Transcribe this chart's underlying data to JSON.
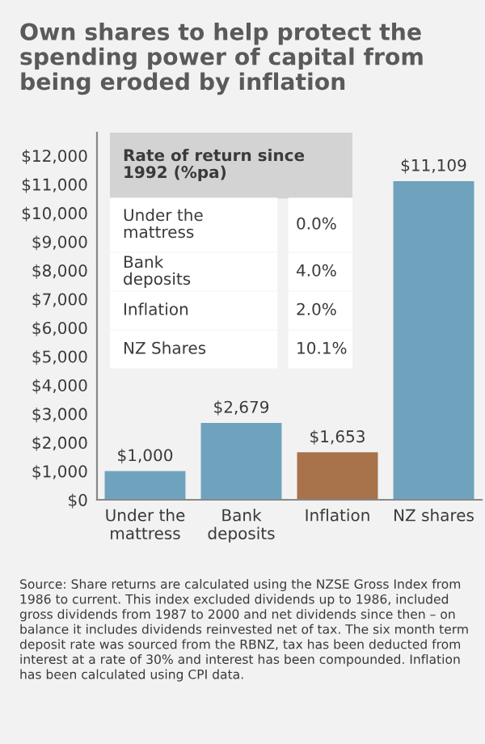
{
  "chart_data": {
    "type": "bar",
    "title": "Own shares to help protect the spending power of capital from being eroded by inflation",
    "categories": [
      "Under the\nmattress",
      "Bank\ndeposits",
      "Inflation",
      "NZ shares"
    ],
    "values": [
      1000,
      2679,
      1653,
      11109
    ],
    "colors": [
      "#6fa3bd",
      "#6fa3bd",
      "#a8724a",
      "#6fa3bd"
    ],
    "value_labels": [
      "$1,000",
      "$2,679",
      "$1,653",
      "$11,109"
    ],
    "ylim": [
      0,
      12800
    ],
    "yticks": [
      {
        "value": 0,
        "label": "$0"
      },
      {
        "value": 1000,
        "label": "$1,000"
      },
      {
        "value": 2000,
        "label": "$2,000"
      },
      {
        "value": 3000,
        "label": "$3,000"
      },
      {
        "value": 4000,
        "label": "$4,000"
      },
      {
        "value": 5000,
        "label": "$5,000"
      },
      {
        "value": 6000,
        "label": "$6,000"
      },
      {
        "value": 7000,
        "label": "$7,000"
      },
      {
        "value": 8000,
        "label": "$8,000"
      },
      {
        "value": 9000,
        "label": "$9,000"
      },
      {
        "value": 10000,
        "label": "$10,000"
      },
      {
        "value": 11000,
        "label": "$11,000"
      },
      {
        "value": 12000,
        "label": "$12,000"
      }
    ],
    "grid": false,
    "annotations": [
      "Rate of return since 1992 (%pa)",
      "Under the mattress",
      "0.0%",
      "Bank deposits",
      "4.0%",
      "Inflation",
      "2.0%",
      "NZ Shares",
      "10.1%",
      "Source: Share returns are calculated using the NZSE Gross Index from 1986 to current. This index excluded dividends up to 1986, included gross dividends from 1987 to 2000 and net dividends since then – on balance it includes dividends reinvested net of tax. The six month term deposit rate was sourced from the RBNZ, tax has been deducted from interest at a rate of 30% and interest has been compounded. Inflation has been calculated using CPI data."
    ]
  }
}
